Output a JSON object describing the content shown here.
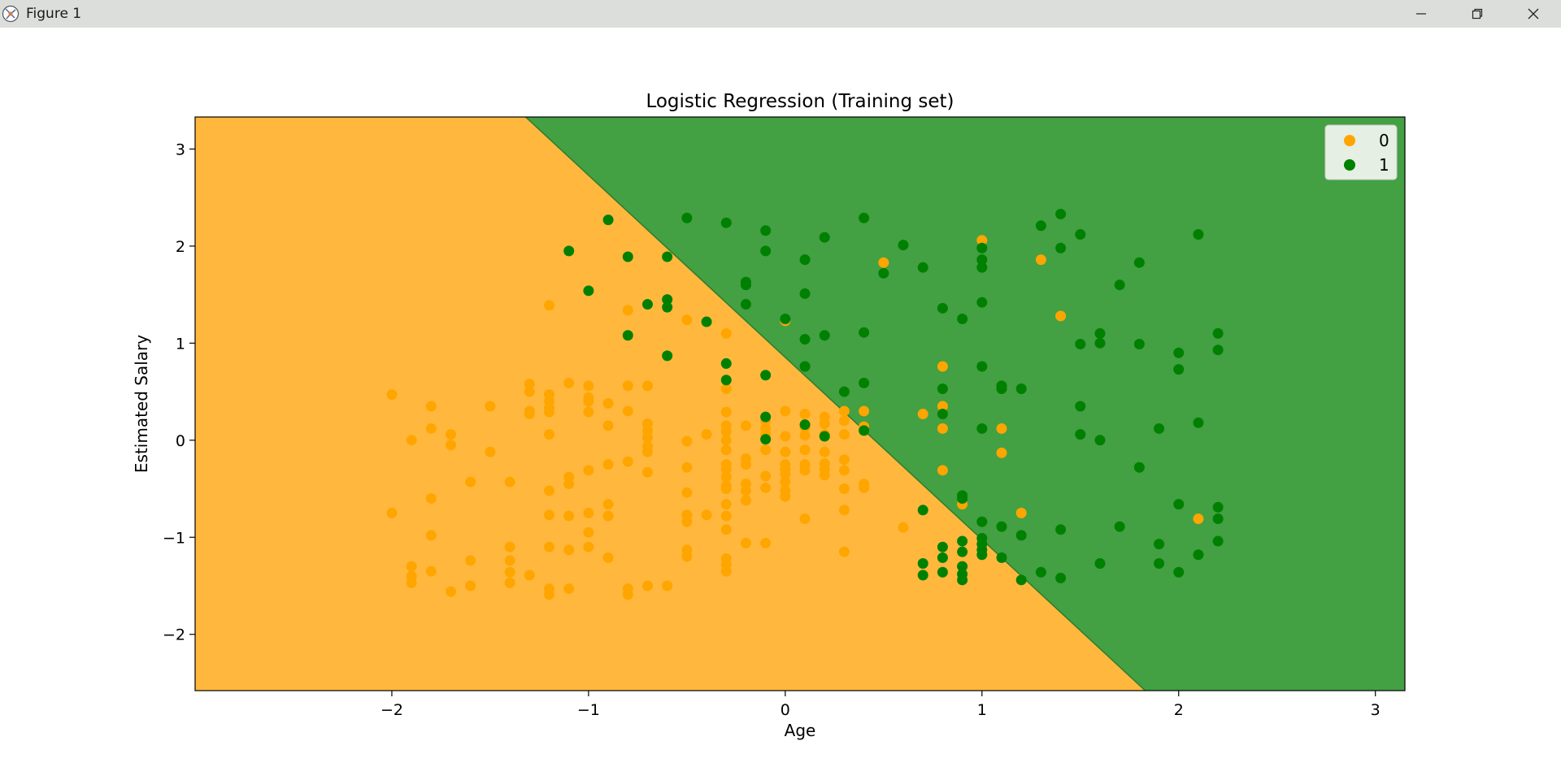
{
  "window": {
    "title": "Figure 1",
    "icons": [
      "figure-app-icon",
      "minimize-icon",
      "restore-icon",
      "close-icon"
    ]
  },
  "colors": {
    "class0_region": "#ffb83d",
    "class1_region": "#43a043",
    "class0_point": "#ffa500",
    "class1_point": "#008000"
  },
  "chart_data": {
    "type": "scatter",
    "title": "Logistic Regression (Training set)",
    "xlabel": "Age",
    "ylabel": "Estimated Salary",
    "xlim": [
      -3.0,
      3.15
    ],
    "ylim": [
      -2.58,
      3.33
    ],
    "xticks": [
      -2,
      -1,
      0,
      1,
      2,
      3
    ],
    "yticks": [
      -2,
      -1,
      0,
      1,
      2,
      3
    ],
    "xtick_labels": [
      "−2",
      "−1",
      "0",
      "1",
      "2",
      "3"
    ],
    "ytick_labels": [
      "−2",
      "−1",
      "0",
      "1",
      "2",
      "3"
    ],
    "grid": false,
    "legend_position": "top-right",
    "decision_boundary": [
      [
        -1.32,
        3.33
      ],
      [
        1.83,
        -2.58
      ]
    ],
    "regions": [
      {
        "class": "0",
        "side": "below-left of boundary"
      },
      {
        "class": "1",
        "side": "above-right of boundary"
      }
    ],
    "series": [
      {
        "name": "0",
        "points": [
          [
            -2.0,
            0.47
          ],
          [
            -2.0,
            -0.75
          ],
          [
            -1.9,
            0.0
          ],
          [
            -1.9,
            -1.3
          ],
          [
            -1.9,
            -1.4
          ],
          [
            -1.9,
            -1.47
          ],
          [
            -1.8,
            0.35
          ],
          [
            -1.8,
            0.12
          ],
          [
            -1.8,
            -0.6
          ],
          [
            -1.8,
            -0.98
          ],
          [
            -1.8,
            -1.35
          ],
          [
            -1.7,
            0.06
          ],
          [
            -1.7,
            -0.05
          ],
          [
            -1.7,
            -1.56
          ],
          [
            -1.6,
            -0.43
          ],
          [
            -1.6,
            -1.24
          ],
          [
            -1.6,
            -1.5
          ],
          [
            -1.5,
            0.35
          ],
          [
            -1.5,
            -0.12
          ],
          [
            -1.4,
            -0.43
          ],
          [
            -1.4,
            -1.1
          ],
          [
            -1.4,
            -1.24
          ],
          [
            -1.4,
            -1.36
          ],
          [
            -1.4,
            -1.47
          ],
          [
            -1.3,
            0.58
          ],
          [
            -1.3,
            0.5
          ],
          [
            -1.3,
            0.3
          ],
          [
            -1.3,
            0.27
          ],
          [
            -1.3,
            -1.39
          ],
          [
            -1.2,
            1.39
          ],
          [
            -1.2,
            0.47
          ],
          [
            -1.2,
            0.4
          ],
          [
            -1.2,
            0.33
          ],
          [
            -1.2,
            0.29
          ],
          [
            -1.2,
            0.06
          ],
          [
            -1.2,
            -0.52
          ],
          [
            -1.2,
            -0.77
          ],
          [
            -1.2,
            -1.1
          ],
          [
            -1.2,
            -1.53
          ],
          [
            -1.2,
            -1.59
          ],
          [
            -1.1,
            0.59
          ],
          [
            -1.1,
            -0.38
          ],
          [
            -1.1,
            -0.45
          ],
          [
            -1.1,
            -0.78
          ],
          [
            -1.1,
            -1.13
          ],
          [
            -1.1,
            -1.53
          ],
          [
            -1.0,
            0.56
          ],
          [
            -1.0,
            0.44
          ],
          [
            -1.0,
            0.4
          ],
          [
            -1.0,
            0.29
          ],
          [
            -1.0,
            -0.31
          ],
          [
            -1.0,
            -0.75
          ],
          [
            -1.0,
            -0.95
          ],
          [
            -1.0,
            -1.1
          ],
          [
            -0.9,
            0.38
          ],
          [
            -0.9,
            0.15
          ],
          [
            -0.9,
            -0.25
          ],
          [
            -0.9,
            -0.66
          ],
          [
            -0.9,
            -0.78
          ],
          [
            -0.9,
            -1.21
          ],
          [
            -0.8,
            1.34
          ],
          [
            -0.8,
            0.56
          ],
          [
            -0.8,
            0.3
          ],
          [
            -0.8,
            -0.22
          ],
          [
            -0.8,
            -1.53
          ],
          [
            -0.8,
            -1.59
          ],
          [
            -0.7,
            0.56
          ],
          [
            -0.7,
            0.17
          ],
          [
            -0.7,
            0.1
          ],
          [
            -0.7,
            0.03
          ],
          [
            -0.7,
            -0.06
          ],
          [
            -0.7,
            -0.12
          ],
          [
            -0.7,
            -0.33
          ],
          [
            -0.7,
            -1.5
          ],
          [
            -0.6,
            -1.5
          ],
          [
            -0.5,
            1.24
          ],
          [
            -0.5,
            -0.01
          ],
          [
            -0.5,
            -0.28
          ],
          [
            -0.5,
            -0.54
          ],
          [
            -0.5,
            -0.77
          ],
          [
            -0.5,
            -0.84
          ],
          [
            -0.5,
            -1.13
          ],
          [
            -0.5,
            -1.2
          ],
          [
            -0.4,
            0.06
          ],
          [
            -0.4,
            -0.77
          ],
          [
            -0.3,
            1.1
          ],
          [
            -0.3,
            0.53
          ],
          [
            -0.3,
            0.29
          ],
          [
            -0.3,
            0.15
          ],
          [
            -0.3,
            0.09
          ],
          [
            -0.3,
            0.0
          ],
          [
            -0.3,
            -0.1
          ],
          [
            -0.3,
            -0.25
          ],
          [
            -0.3,
            -0.3
          ],
          [
            -0.3,
            -0.38
          ],
          [
            -0.3,
            -0.47
          ],
          [
            -0.3,
            -0.5
          ],
          [
            -0.3,
            -0.66
          ],
          [
            -0.3,
            -0.78
          ],
          [
            -0.3,
            -0.92
          ],
          [
            -0.3,
            -1.22
          ],
          [
            -0.3,
            -1.28
          ],
          [
            -0.3,
            -1.35
          ],
          [
            -0.2,
            0.15
          ],
          [
            -0.2,
            -0.19
          ],
          [
            -0.2,
            -0.25
          ],
          [
            -0.2,
            -0.45
          ],
          [
            -0.2,
            -0.52
          ],
          [
            -0.2,
            -0.62
          ],
          [
            -0.2,
            -1.06
          ],
          [
            -0.1,
            0.2
          ],
          [
            -0.1,
            0.12
          ],
          [
            -0.1,
            0.06
          ],
          [
            -0.1,
            -0.1
          ],
          [
            -0.1,
            -0.37
          ],
          [
            -0.1,
            -0.49
          ],
          [
            -0.1,
            -1.06
          ],
          [
            0.0,
            1.23
          ],
          [
            0.0,
            0.3
          ],
          [
            0.0,
            0.04
          ],
          [
            0.0,
            -0.12
          ],
          [
            0.0,
            -0.25
          ],
          [
            0.0,
            -0.3
          ],
          [
            0.0,
            -0.35
          ],
          [
            0.0,
            -0.43
          ],
          [
            0.0,
            -0.52
          ],
          [
            0.0,
            -0.58
          ],
          [
            0.1,
            0.27
          ],
          [
            0.1,
            0.13
          ],
          [
            0.1,
            0.05
          ],
          [
            0.1,
            -0.1
          ],
          [
            0.1,
            -0.25
          ],
          [
            0.1,
            -0.31
          ],
          [
            0.1,
            -0.81
          ],
          [
            0.2,
            0.24
          ],
          [
            0.2,
            0.17
          ],
          [
            0.2,
            0.06
          ],
          [
            0.2,
            -0.12
          ],
          [
            0.2,
            -0.24
          ],
          [
            0.2,
            -0.3
          ],
          [
            0.2,
            -0.36
          ],
          [
            0.3,
            0.3
          ],
          [
            0.3,
            0.2
          ],
          [
            0.3,
            0.06
          ],
          [
            0.3,
            -0.2
          ],
          [
            0.3,
            -0.31
          ],
          [
            0.3,
            -0.5
          ],
          [
            0.3,
            -0.72
          ],
          [
            0.3,
            -1.15
          ],
          [
            0.4,
            0.3
          ],
          [
            0.4,
            0.14
          ],
          [
            0.4,
            -0.45
          ],
          [
            0.4,
            -0.49
          ],
          [
            0.5,
            1.83
          ],
          [
            0.6,
            -0.9
          ],
          [
            0.7,
            0.27
          ],
          [
            0.8,
            0.76
          ],
          [
            0.8,
            0.35
          ],
          [
            0.8,
            0.12
          ],
          [
            0.8,
            -0.31
          ],
          [
            0.9,
            -0.66
          ],
          [
            1.0,
            2.06
          ],
          [
            1.1,
            0.12
          ],
          [
            1.1,
            -0.13
          ],
          [
            1.2,
            -0.75
          ],
          [
            1.3,
            1.86
          ],
          [
            1.4,
            1.28
          ],
          [
            2.1,
            -0.81
          ]
        ]
      },
      {
        "name": "1",
        "points": [
          [
            -1.1,
            1.95
          ],
          [
            -1.0,
            1.54
          ],
          [
            -0.9,
            2.27
          ],
          [
            -0.8,
            1.89
          ],
          [
            -0.8,
            1.08
          ],
          [
            -0.7,
            1.4
          ],
          [
            -0.6,
            1.89
          ],
          [
            -0.6,
            1.45
          ],
          [
            -0.6,
            1.37
          ],
          [
            -0.6,
            0.87
          ],
          [
            -0.5,
            2.29
          ],
          [
            -0.4,
            1.22
          ],
          [
            -0.3,
            2.24
          ],
          [
            -0.3,
            0.79
          ],
          [
            -0.3,
            0.62
          ],
          [
            -0.2,
            1.63
          ],
          [
            -0.2,
            1.6
          ],
          [
            -0.2,
            1.4
          ],
          [
            -0.1,
            2.16
          ],
          [
            -0.1,
            1.95
          ],
          [
            -0.1,
            0.67
          ],
          [
            -0.1,
            0.24
          ],
          [
            -0.1,
            0.01
          ],
          [
            0.0,
            1.25
          ],
          [
            0.1,
            1.86
          ],
          [
            0.1,
            1.51
          ],
          [
            0.1,
            1.04
          ],
          [
            0.1,
            0.76
          ],
          [
            0.1,
            0.16
          ],
          [
            0.2,
            2.09
          ],
          [
            0.2,
            1.08
          ],
          [
            0.2,
            0.04
          ],
          [
            0.3,
            0.5
          ],
          [
            0.4,
            2.29
          ],
          [
            0.4,
            1.11
          ],
          [
            0.4,
            0.59
          ],
          [
            0.4,
            0.1
          ],
          [
            0.5,
            1.72
          ],
          [
            0.6,
            2.01
          ],
          [
            0.7,
            1.78
          ],
          [
            0.7,
            -0.72
          ],
          [
            0.7,
            -1.27
          ],
          [
            0.7,
            -1.39
          ],
          [
            0.8,
            1.36
          ],
          [
            0.8,
            0.53
          ],
          [
            0.8,
            0.27
          ],
          [
            0.8,
            -1.1
          ],
          [
            0.8,
            -1.21
          ],
          [
            0.8,
            -1.36
          ],
          [
            0.9,
            1.25
          ],
          [
            0.9,
            -0.57
          ],
          [
            0.9,
            -0.6
          ],
          [
            0.9,
            -1.04
          ],
          [
            0.9,
            -1.15
          ],
          [
            0.9,
            -1.3
          ],
          [
            0.9,
            -1.38
          ],
          [
            0.9,
            -1.44
          ],
          [
            1.0,
            1.98
          ],
          [
            1.0,
            1.86
          ],
          [
            1.0,
            1.78
          ],
          [
            1.0,
            1.42
          ],
          [
            1.0,
            0.76
          ],
          [
            1.0,
            0.12
          ],
          [
            1.0,
            -0.84
          ],
          [
            1.0,
            -1.01
          ],
          [
            1.0,
            -1.07
          ],
          [
            1.0,
            -1.13
          ],
          [
            1.0,
            -1.18
          ],
          [
            1.1,
            0.56
          ],
          [
            1.1,
            0.53
          ],
          [
            1.1,
            -0.89
          ],
          [
            1.1,
            -1.21
          ],
          [
            1.2,
            0.53
          ],
          [
            1.2,
            -0.98
          ],
          [
            1.2,
            -1.44
          ],
          [
            1.3,
            2.21
          ],
          [
            1.3,
            -1.36
          ],
          [
            1.4,
            2.33
          ],
          [
            1.4,
            1.98
          ],
          [
            1.4,
            -0.92
          ],
          [
            1.4,
            -1.42
          ],
          [
            1.5,
            2.12
          ],
          [
            1.5,
            0.99
          ],
          [
            1.5,
            0.35
          ],
          [
            1.5,
            0.06
          ],
          [
            1.6,
            1.1
          ],
          [
            1.6,
            1.0
          ],
          [
            1.6,
            0.0
          ],
          [
            1.6,
            -1.27
          ],
          [
            1.7,
            1.6
          ],
          [
            1.7,
            -0.89
          ],
          [
            1.8,
            1.83
          ],
          [
            1.8,
            0.99
          ],
          [
            1.8,
            -0.28
          ],
          [
            1.9,
            0.12
          ],
          [
            1.9,
            -1.07
          ],
          [
            1.9,
            -1.27
          ],
          [
            2.0,
            0.9
          ],
          [
            2.0,
            0.73
          ],
          [
            2.0,
            -0.66
          ],
          [
            2.0,
            -1.36
          ],
          [
            2.1,
            2.12
          ],
          [
            2.1,
            0.18
          ],
          [
            2.1,
            -1.18
          ],
          [
            2.2,
            1.1
          ],
          [
            2.2,
            0.93
          ],
          [
            2.2,
            -0.69
          ],
          [
            2.2,
            -0.81
          ],
          [
            2.2,
            -1.04
          ]
        ]
      }
    ]
  }
}
